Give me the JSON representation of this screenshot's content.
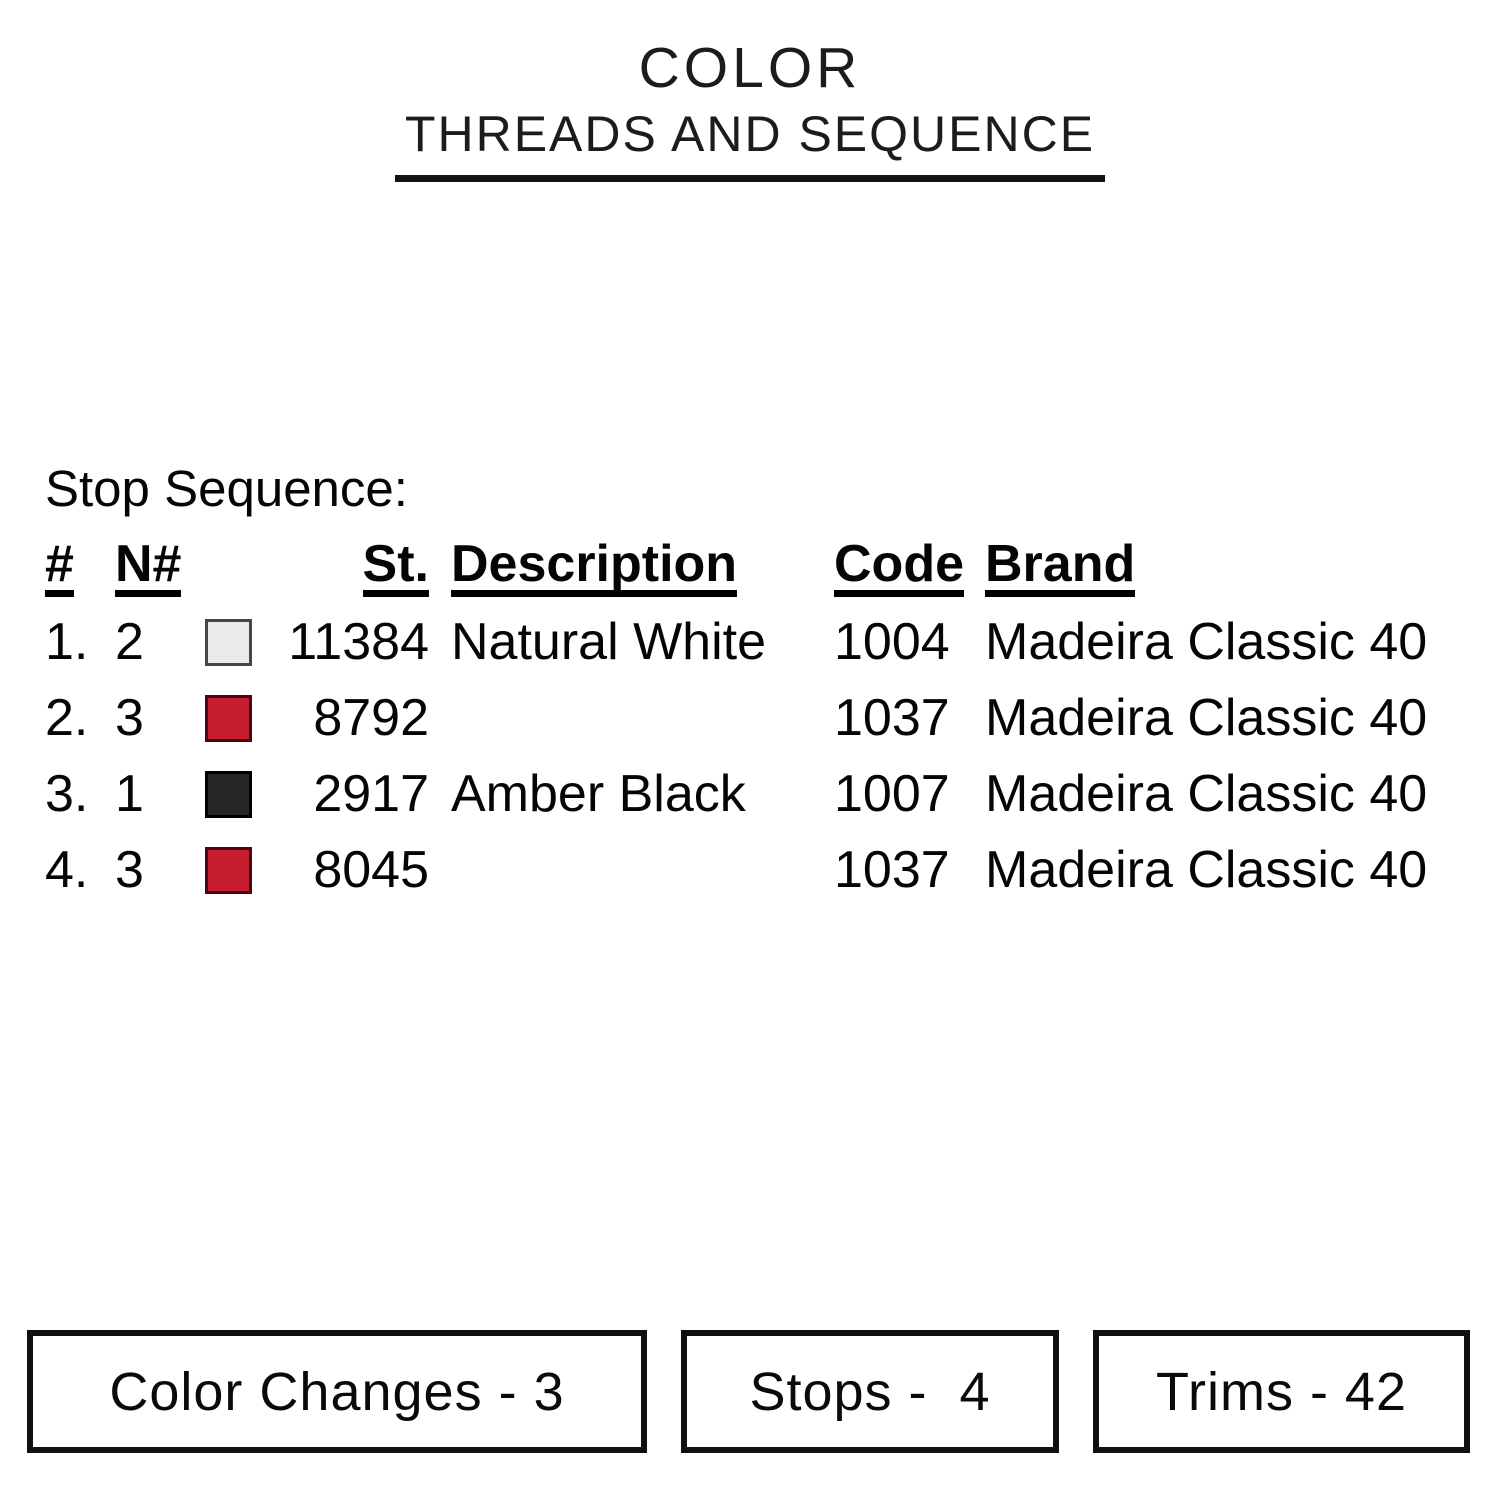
{
  "title": {
    "main": "COLOR",
    "subtitle": "THREADS AND SEQUENCE"
  },
  "stop_sequence": {
    "heading": "Stop Sequence:",
    "columns": {
      "index": "#",
      "needle": "N#",
      "stitches": "St.",
      "description": "Description",
      "code": "Code",
      "brand": "Brand"
    },
    "rows": [
      {
        "index": "1.",
        "needle": "2",
        "swatch": {
          "name": "natural-white",
          "fill": "#eaeaec",
          "border": "#474747"
        },
        "stitches": "11384",
        "description": "Natural White",
        "code": "1004",
        "brand": "Madeira Classic 40"
      },
      {
        "index": "2.",
        "needle": "3",
        "swatch": {
          "name": "red",
          "fill": "#c51d2e",
          "border": "#49080f"
        },
        "stitches": "8792",
        "description": "",
        "code": "1037",
        "brand": "Madeira Classic 40"
      },
      {
        "index": "3.",
        "needle": "1",
        "swatch": {
          "name": "amber-black",
          "fill": "#272727",
          "border": "#000000"
        },
        "stitches": "2917",
        "description": "Amber Black",
        "code": "1007",
        "brand": "Madeira Classic 40"
      },
      {
        "index": "4.",
        "needle": "3",
        "swatch": {
          "name": "red",
          "fill": "#c51d2e",
          "border": "#49080f"
        },
        "stitches": "8045",
        "description": "",
        "code": "1037",
        "brand": "Madeira Classic 40"
      }
    ]
  },
  "summary": {
    "color_changes": "Color Changes - 3",
    "stops": "Stops -  4",
    "trims": "Trims - 42"
  }
}
